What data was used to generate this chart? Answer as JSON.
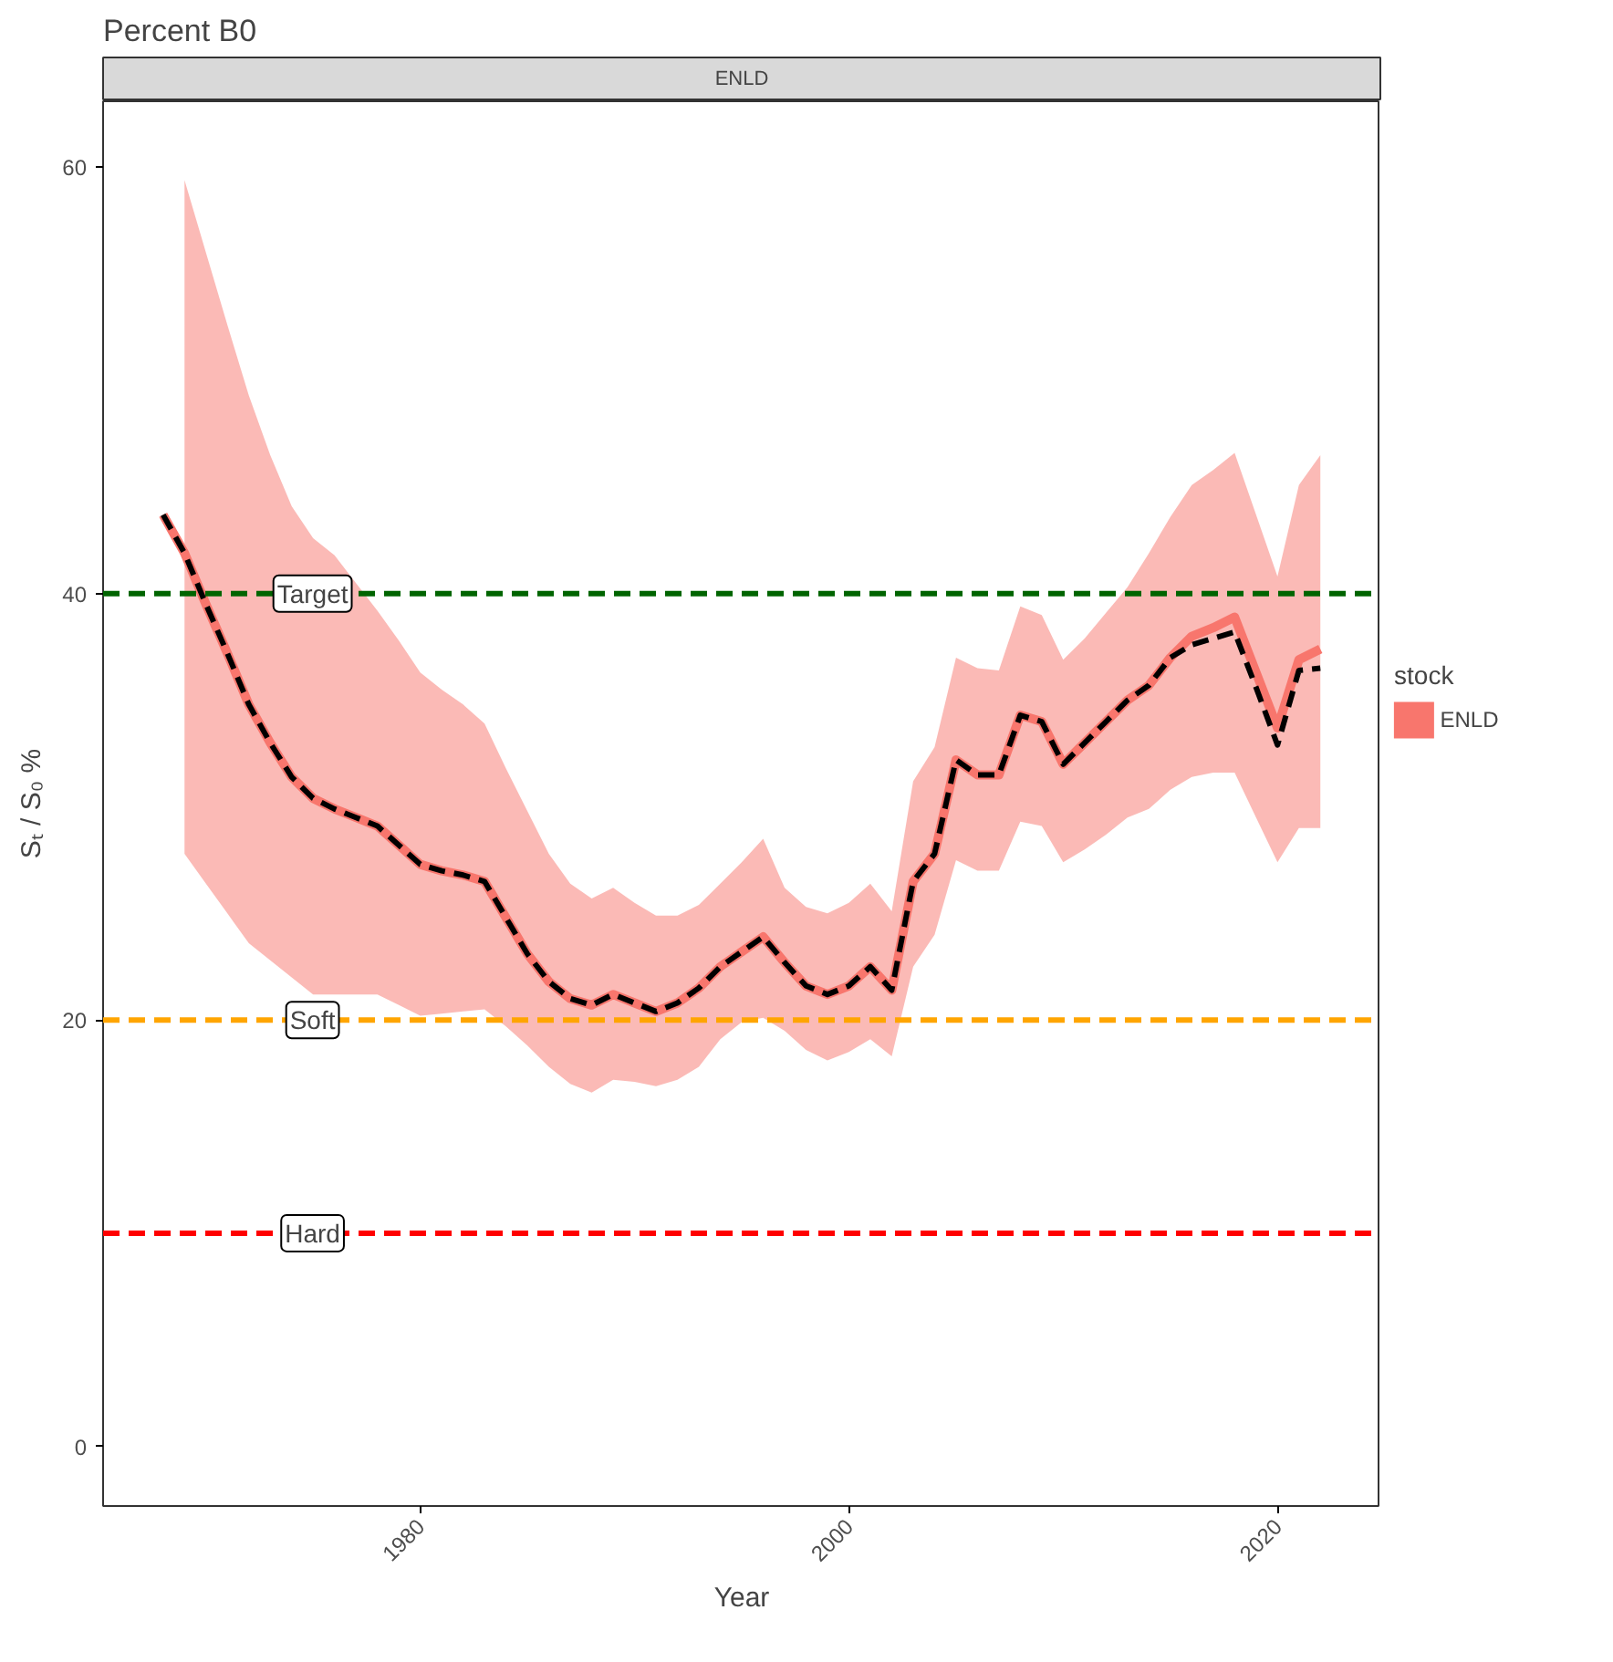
{
  "chart_data": {
    "type": "line",
    "title": "Percent B0",
    "subtitle": "ENLD",
    "xlabel": "Year",
    "ylabel": "Sₜ / S₀ %",
    "legend_title": "stock",
    "xlim": [
      1965.2,
      2024.8
    ],
    "xticks": [
      1980,
      2000,
      2020
    ],
    "ylim": [
      -2.8,
      63.1
    ],
    "yticks": [
      0,
      20,
      40,
      60
    ],
    "series": [
      {
        "name": "ENLD",
        "color": "#f8766d",
        "x": [
          1968,
          1969,
          1970,
          1971,
          1972,
          1973,
          1974,
          1975,
          1976,
          1977,
          1978,
          1979,
          1980,
          1981,
          1982,
          1983,
          1984,
          1985,
          1986,
          1987,
          1988,
          1989,
          1990,
          1991,
          1992,
          1993,
          1994,
          1995,
          1996,
          1997,
          1998,
          1999,
          2000,
          2001,
          2002,
          2003,
          2004,
          2005,
          2006,
          2007,
          2008,
          2009,
          2010,
          2011,
          2012,
          2013,
          2014,
          2015,
          2016,
          2017,
          2018,
          2019,
          2020,
          2021,
          2022
        ],
        "values": [
          43.7,
          41.9,
          39.5,
          37.2,
          34.8,
          33.0,
          31.4,
          30.4,
          29.9,
          29.5,
          29.1,
          28.2,
          27.3,
          27.0,
          26.8,
          26.5,
          24.8,
          23.1,
          21.8,
          21.0,
          20.7,
          21.2,
          20.8,
          20.4,
          20.8,
          21.5,
          22.5,
          23.2,
          23.9,
          22.7,
          21.6,
          21.2,
          21.6,
          22.5,
          21.4,
          26.5,
          27.8,
          32.2,
          31.5,
          31.5,
          34.3,
          34.0,
          32.0,
          33.0,
          34.0,
          35.0,
          35.7,
          37.0,
          38.0,
          38.4,
          38.9,
          36.3,
          33.7,
          36.9,
          37.4
        ],
        "upper": [
          null,
          59.4,
          56.0,
          52.6,
          49.3,
          46.5,
          44.1,
          42.6,
          41.8,
          40.5,
          39.2,
          37.8,
          36.3,
          35.5,
          34.8,
          33.9,
          31.8,
          29.8,
          27.8,
          26.4,
          25.7,
          26.2,
          25.5,
          24.9,
          24.9,
          25.4,
          26.4,
          27.4,
          28.5,
          26.2,
          25.3,
          25.0,
          25.5,
          26.4,
          25.1,
          31.2,
          32.8,
          37.0,
          36.5,
          36.4,
          39.4,
          39.0,
          36.9,
          37.9,
          39.1,
          40.3,
          41.9,
          43.6,
          45.1,
          45.8,
          46.6,
          43.7,
          40.8,
          45.1,
          46.5
        ],
        "lower": [
          null,
          27.8,
          26.4,
          25.0,
          23.6,
          22.8,
          22.0,
          21.2,
          21.2,
          21.2,
          21.2,
          20.7,
          20.2,
          20.3,
          20.4,
          20.5,
          19.7,
          18.8,
          17.8,
          17.0,
          16.6,
          17.2,
          17.1,
          16.9,
          17.2,
          17.8,
          19.1,
          19.9,
          20.1,
          19.5,
          18.6,
          18.1,
          18.5,
          19.1,
          18.3,
          22.5,
          24.0,
          27.5,
          27.0,
          27.0,
          29.3,
          29.1,
          27.4,
          28.0,
          28.7,
          29.5,
          29.9,
          30.8,
          31.4,
          31.6,
          31.6,
          29.5,
          27.4,
          29.0,
          29.0
        ]
      },
      {
        "color": "#000000",
        "line_style": "dashed",
        "x": [
          1968,
          1969,
          1970,
          1971,
          1972,
          1973,
          1974,
          1975,
          1976,
          1977,
          1978,
          1979,
          1980,
          1981,
          1982,
          1983,
          1984,
          1985,
          1986,
          1987,
          1988,
          1989,
          1990,
          1991,
          1992,
          1993,
          1994,
          1995,
          1996,
          1997,
          1998,
          1999,
          2000,
          2001,
          2002,
          2003,
          2004,
          2005,
          2006,
          2007,
          2008,
          2009,
          2010,
          2011,
          2012,
          2013,
          2014,
          2015,
          2016,
          2017,
          2018,
          2019,
          2020,
          2021,
          2022
        ],
        "values": [
          43.7,
          41.9,
          39.5,
          37.2,
          34.8,
          33.0,
          31.4,
          30.4,
          29.9,
          29.5,
          29.1,
          28.2,
          27.3,
          27.0,
          26.8,
          26.5,
          24.8,
          23.1,
          21.8,
          21.0,
          20.7,
          21.2,
          20.8,
          20.4,
          20.8,
          21.5,
          22.5,
          23.2,
          23.9,
          22.7,
          21.6,
          21.2,
          21.6,
          22.5,
          21.4,
          26.5,
          27.8,
          32.2,
          31.5,
          31.5,
          34.3,
          34.0,
          32.0,
          33.0,
          34.0,
          35.0,
          35.7,
          37.0,
          37.6,
          37.9,
          38.2,
          35.6,
          32.9,
          36.4,
          36.5
        ]
      }
    ],
    "ref_lines": [
      {
        "axis": "y",
        "value": 40,
        "label": "Target",
        "color": "#006400",
        "line_style": "dashed"
      },
      {
        "axis": "y",
        "value": 20,
        "label": "Soft",
        "color": "#ffa500",
        "line_style": "dashed"
      },
      {
        "axis": "y",
        "value": 10,
        "label": "Hard",
        "color": "#ff0000",
        "line_style": "dashed"
      }
    ],
    "grid": false,
    "legend": "right"
  }
}
